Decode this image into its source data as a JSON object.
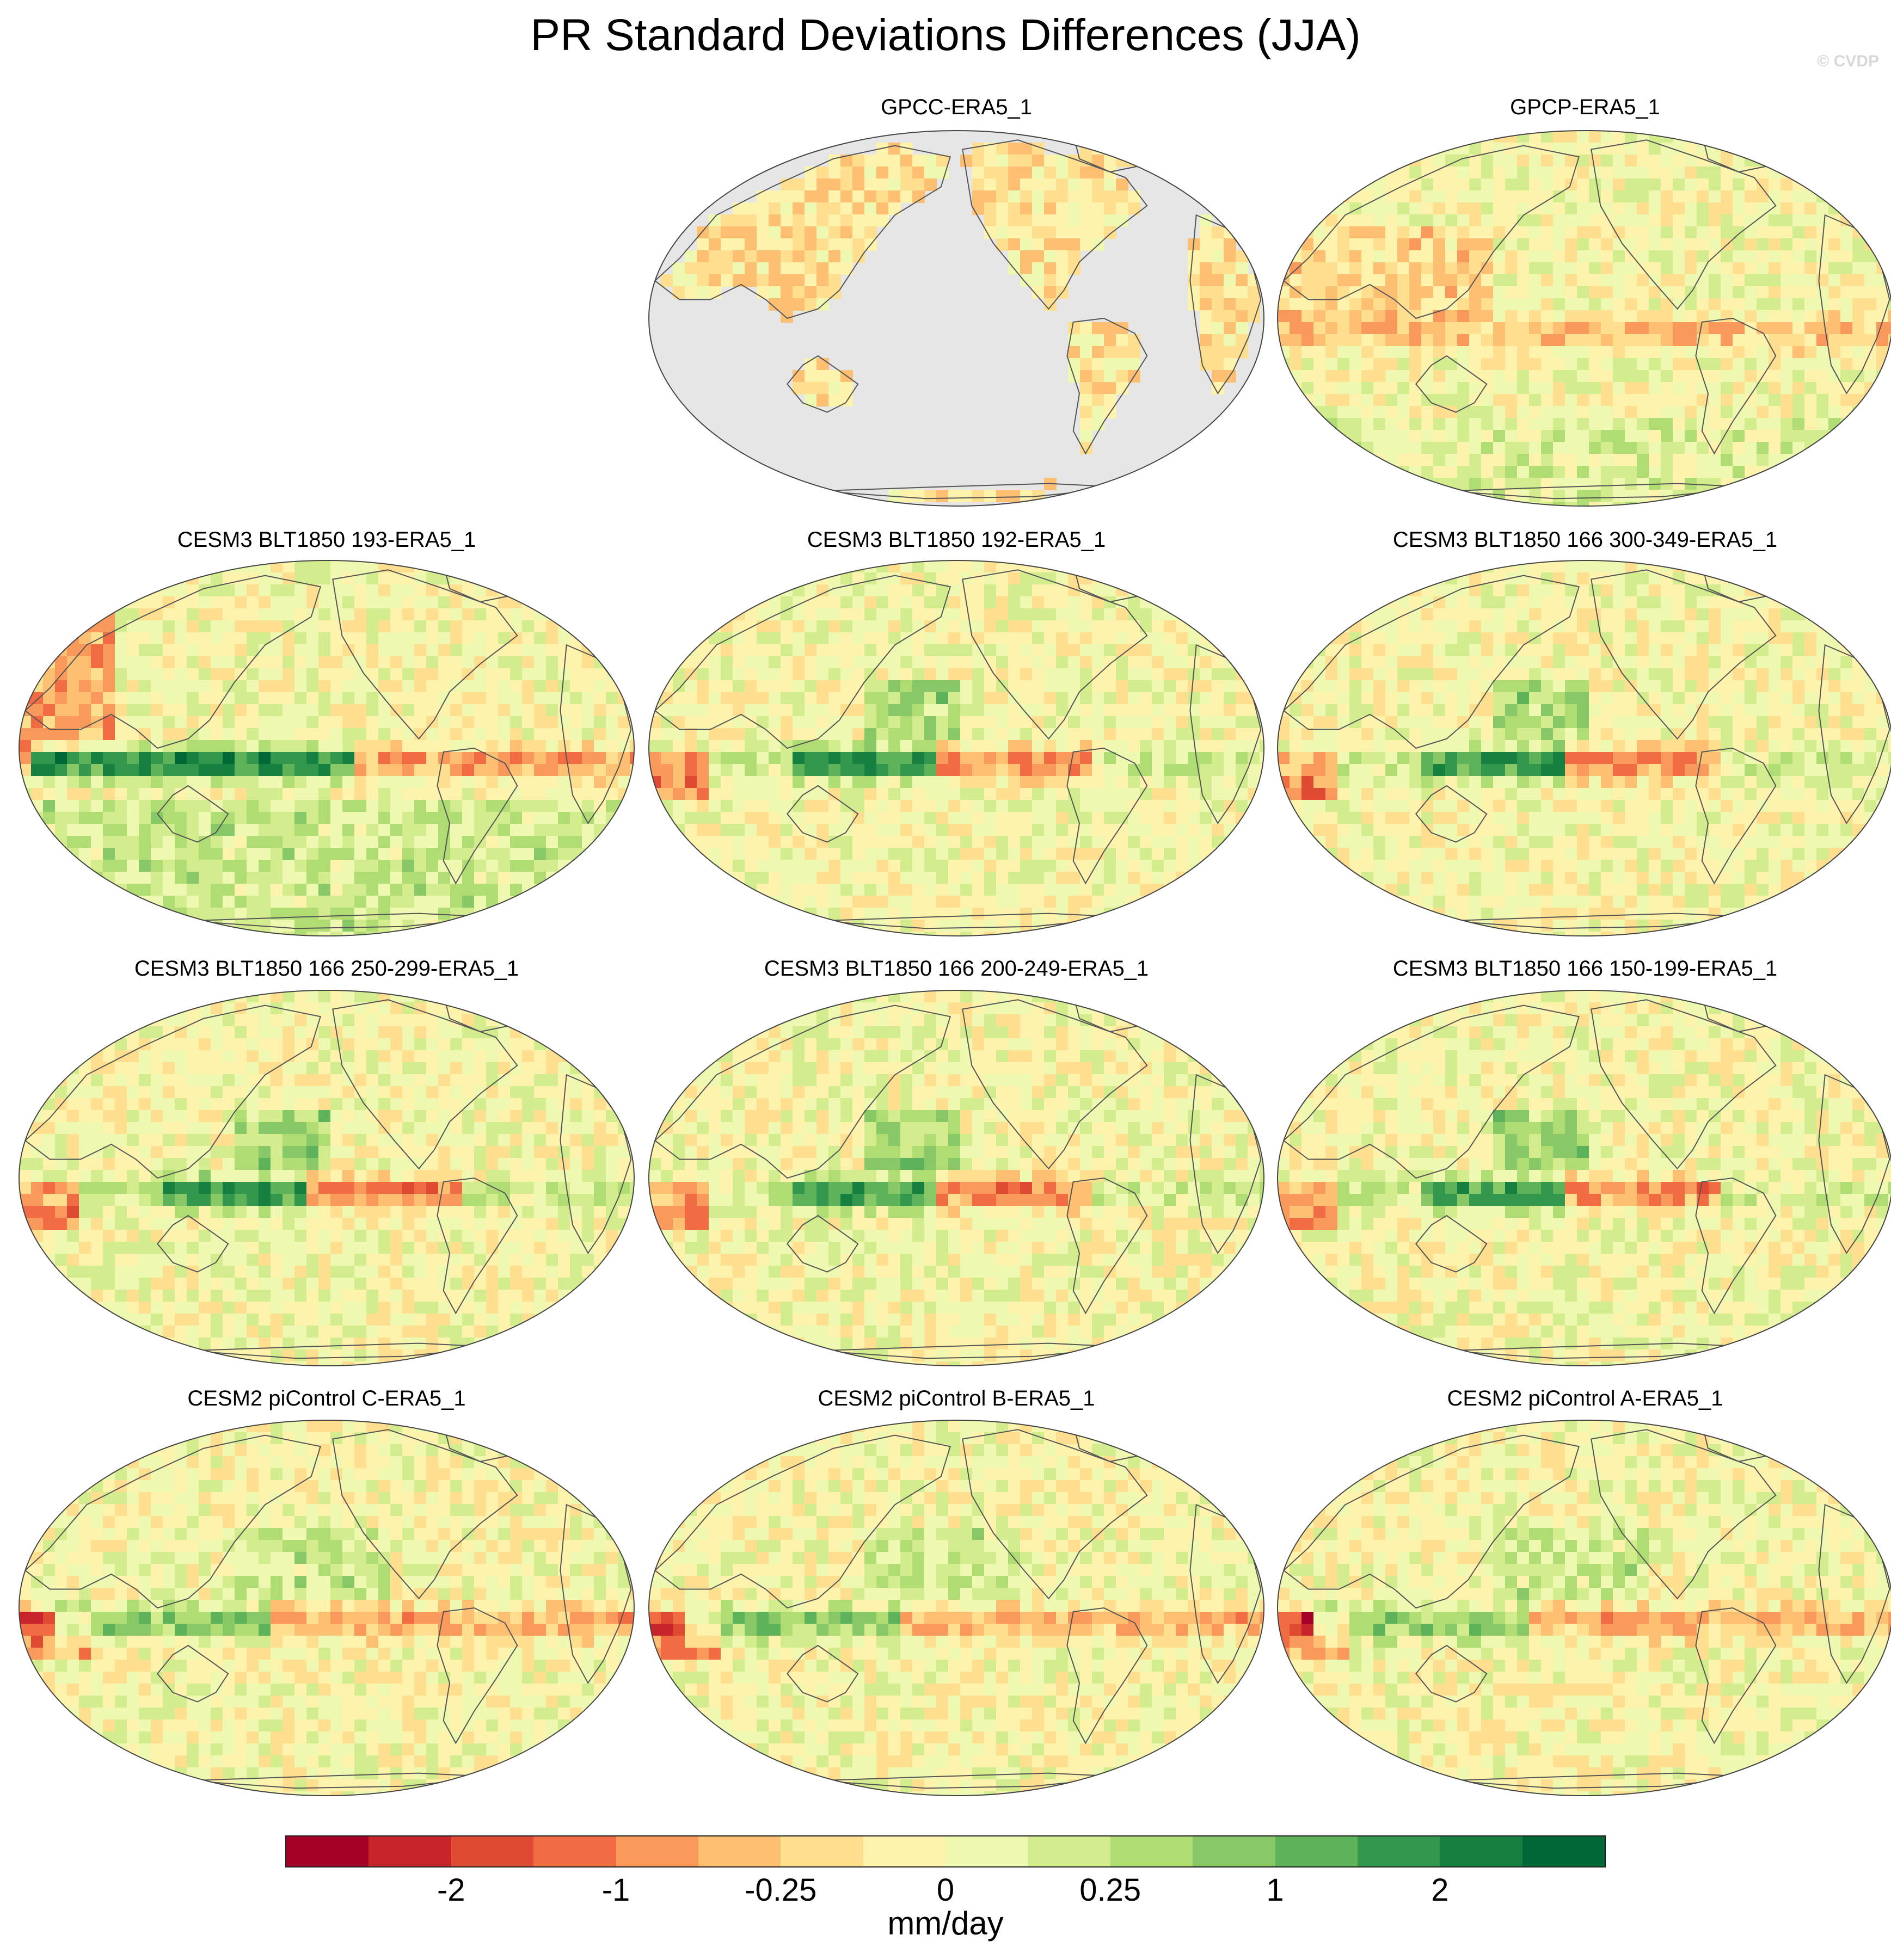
{
  "title": "PR Standard Deviations Differences (JJA)",
  "watermark": "© CVDP",
  "panels": [
    {
      "label": "GPCC-ERA5_1",
      "style": "land"
    },
    {
      "label": "GPCP-ERA5_1",
      "style": "gpcp"
    },
    {
      "label": "CESM3 BLT1850 193-ERA5_1",
      "style": "strong"
    },
    {
      "label": "CESM3 BLT1850 192-ERA5_1",
      "style": "model"
    },
    {
      "label": "CESM3 BLT1850 166 300-349-ERA5_1",
      "style": "model"
    },
    {
      "label": "CESM3 BLT1850 166 250-299-ERA5_1",
      "style": "model"
    },
    {
      "label": "CESM3 BLT1850 166 200-249-ERA5_1",
      "style": "model"
    },
    {
      "label": "CESM3 BLT1850 166 150-199-ERA5_1",
      "style": "model"
    },
    {
      "label": "CESM2 piControl C-ERA5_1",
      "style": "cesm2"
    },
    {
      "label": "CESM2 piControl B-ERA5_1",
      "style": "cesm2"
    },
    {
      "label": "CESM2 piControl A-ERA5_1",
      "style": "cesm2"
    }
  ],
  "colorbar": {
    "units": "mm/day",
    "tick_labels": [
      "-2",
      "-1",
      "-0.25",
      "0",
      "0.25",
      "1",
      "2"
    ],
    "colors": [
      "#a50026",
      "#c8242c",
      "#df4a33",
      "#f16b43",
      "#f99a5c",
      "#fdbf71",
      "#fedf8f",
      "#fdf3ac",
      "#eef8b0",
      "#d3ec8d",
      "#b0dc74",
      "#88c866",
      "#5db25a",
      "#33984d",
      "#158040",
      "#006837"
    ]
  }
}
